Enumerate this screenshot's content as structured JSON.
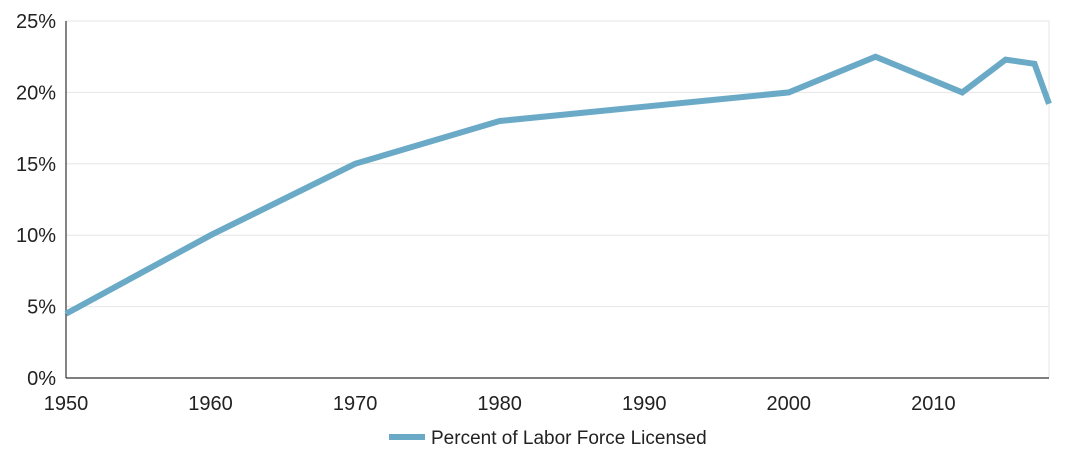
{
  "chart_data": {
    "type": "line",
    "title": "",
    "xlabel": "",
    "ylabel": "",
    "xlim": [
      1950,
      2018
    ],
    "ylim": [
      0,
      25
    ],
    "x_ticks": [
      1950,
      1960,
      1970,
      1980,
      1990,
      2000,
      2010
    ],
    "x_tick_labels": [
      "1950",
      "1960",
      "1970",
      "1980",
      "1990",
      "2000",
      "2010"
    ],
    "y_ticks": [
      0,
      5,
      10,
      15,
      20,
      25
    ],
    "y_tick_labels": [
      "0%",
      "5%",
      "10%",
      "15%",
      "20%",
      "25%"
    ],
    "grid": true,
    "legend_position": "bottom-center",
    "series": [
      {
        "name": "Percent of Labor Force Licensed",
        "color": "#6aaac7",
        "points": [
          {
            "x": 1950,
            "y": 4.5
          },
          {
            "x": 1960,
            "y": 10
          },
          {
            "x": 1970,
            "y": 15
          },
          {
            "x": 1980,
            "y": 18
          },
          {
            "x": 2000,
            "y": 20
          },
          {
            "x": 2006,
            "y": 22.5
          },
          {
            "x": 2012,
            "y": 20
          },
          {
            "x": 2015,
            "y": 22.3
          },
          {
            "x": 2017,
            "y": 22
          },
          {
            "x": 2018,
            "y": 19.2
          }
        ]
      }
    ]
  }
}
